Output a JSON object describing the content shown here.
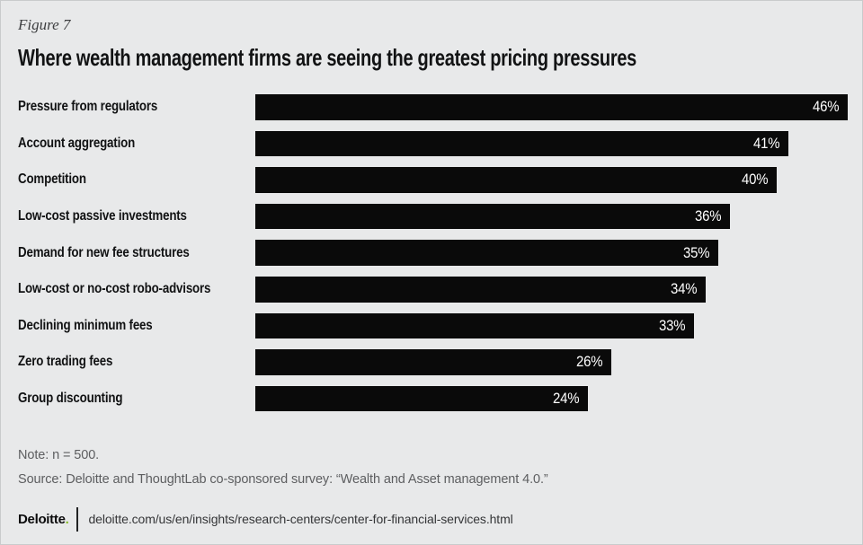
{
  "figure_label": "Figure 7",
  "title": "Where wealth management firms are seeing the greatest pricing pressures",
  "chart_data": {
    "type": "bar",
    "orientation": "horizontal",
    "title": "Where wealth management firms are seeing the greatest pricing pressures",
    "categories": [
      "Pressure from regulators",
      "Account aggregation",
      "Competition",
      "Low-cost passive investments",
      "Demand for new fee structures",
      "Low-cost or no-cost robo-advisors",
      "Declining minimum fees",
      "Zero trading fees",
      "Group discounting"
    ],
    "values": [
      46,
      41,
      40,
      36,
      35,
      34,
      33,
      26,
      24
    ],
    "unit": "%",
    "value_labels": [
      "46%",
      "41%",
      "40%",
      "36%",
      "35%",
      "34%",
      "33%",
      "26%",
      "24%"
    ],
    "bar_color": "#0a0a0a",
    "value_label_color": "#ffffff",
    "value_label_position": "inside-end",
    "axis_ticks": false,
    "grid": false,
    "legend": false
  },
  "note": "Note: n = 500.",
  "source": "Source: Deloitte and ThoughtLab co-sponsored survey: “Wealth and Asset management 4.0.”",
  "footer": {
    "brand": "Deloitte",
    "brand_dot": ".",
    "url": "deloitte.com/us/en/insights/research-centers/center-for-financial-services.html"
  },
  "colors": {
    "background": "#e8e9ea",
    "bar": "#0a0a0a",
    "brand_dot_green": "#86bc25",
    "muted_text": "#5d5e60"
  }
}
